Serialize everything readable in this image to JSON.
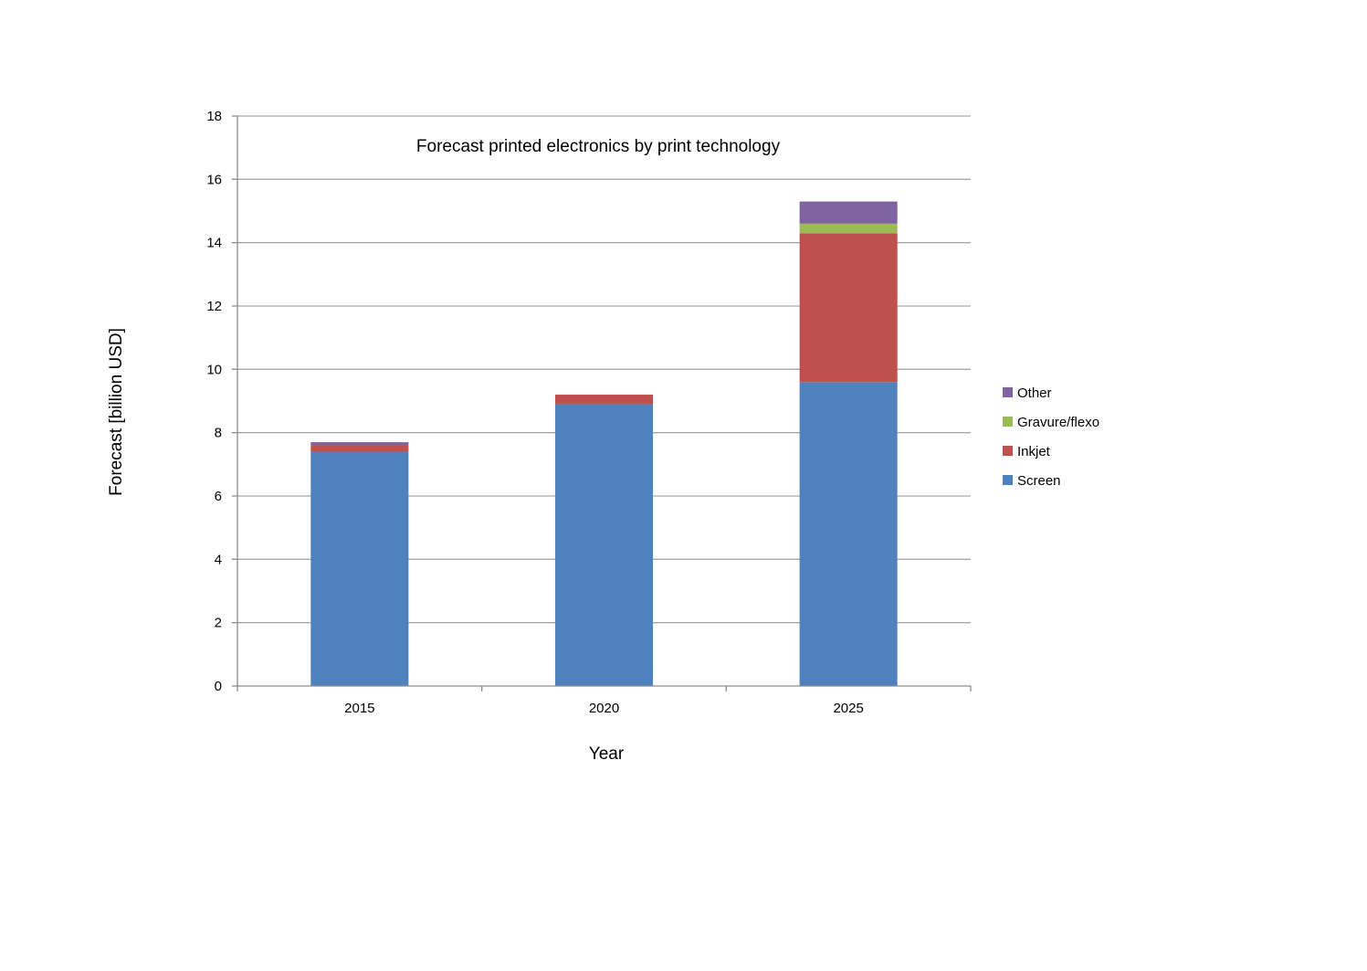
{
  "chart_data": {
    "type": "bar",
    "stacked": true,
    "title": "Forecast printed electronics by print technology",
    "xlabel": "Year",
    "ylabel": "Forecast [billion USD]",
    "categories": [
      "2015",
      "2020",
      "2025"
    ],
    "ylim": [
      0,
      18
    ],
    "yticks": [
      0,
      2,
      4,
      6,
      8,
      10,
      12,
      14,
      16,
      18
    ],
    "grid": true,
    "legend_position": "right",
    "series": [
      {
        "name": "Screen",
        "color": "#4F81BD",
        "values": [
          7.4,
          8.9,
          9.6
        ]
      },
      {
        "name": "Inkjet",
        "color": "#C0504D",
        "values": [
          0.2,
          0.3,
          4.7
        ]
      },
      {
        "name": "Gravure/flexo",
        "color": "#9BBB59",
        "values": [
          0.0,
          0.0,
          0.3
        ]
      },
      {
        "name": "Other",
        "color": "#8064A2",
        "values": [
          0.1,
          0.0,
          0.7
        ]
      }
    ],
    "legend_order": [
      "Other",
      "Gravure/flexo",
      "Inkjet",
      "Screen"
    ]
  }
}
